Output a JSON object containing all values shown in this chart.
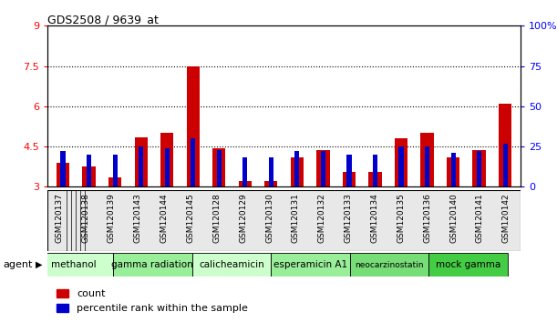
{
  "title": "GDS2508 / 9639_at",
  "samples": [
    "GSM120137",
    "GSM120138",
    "GSM120139",
    "GSM120143",
    "GSM120144",
    "GSM120145",
    "GSM120128",
    "GSM120129",
    "GSM120130",
    "GSM120131",
    "GSM120132",
    "GSM120133",
    "GSM120134",
    "GSM120135",
    "GSM120136",
    "GSM120140",
    "GSM120141",
    "GSM120142"
  ],
  "count_values": [
    3.9,
    3.75,
    3.35,
    4.85,
    5.0,
    7.5,
    4.45,
    3.2,
    3.2,
    4.1,
    4.35,
    3.55,
    3.55,
    4.8,
    5.0,
    4.1,
    4.35,
    6.1
  ],
  "percentile_values": [
    22,
    20,
    20,
    25,
    24,
    30,
    23,
    18,
    18,
    22,
    22,
    20,
    20,
    25,
    25,
    21,
    22,
    27
  ],
  "agents": [
    {
      "label": "methanol",
      "indices": [
        0,
        1,
        2
      ],
      "color": "#ccffcc"
    },
    {
      "label": "gamma radiation",
      "indices": [
        3,
        4,
        5
      ],
      "color": "#99ee99"
    },
    {
      "label": "calicheamicin",
      "indices": [
        6,
        7,
        8
      ],
      "color": "#ccffcc"
    },
    {
      "label": "esperamicin A1",
      "indices": [
        9,
        10,
        11
      ],
      "color": "#99ee99"
    },
    {
      "label": "neocarzinostatin",
      "indices": [
        12,
        13,
        14
      ],
      "color": "#77dd77"
    },
    {
      "label": "mock gamma",
      "indices": [
        15,
        16,
        17
      ],
      "color": "#44cc44"
    }
  ],
  "ylim_left": [
    3,
    9
  ],
  "ylim_right": [
    0,
    100
  ],
  "yticks_left": [
    3,
    4.5,
    6,
    7.5,
    9
  ],
  "yticks_right": [
    0,
    25,
    50,
    75,
    100
  ],
  "bar_color_red": "#cc0000",
  "bar_color_blue": "#0000cc",
  "agent_label": "agent",
  "legend_count": "count",
  "legend_percentile": "percentile rank within the sample",
  "dotted_lines": [
    4.5,
    6.0,
    7.5
  ],
  "background_color": "#e8e8e8"
}
